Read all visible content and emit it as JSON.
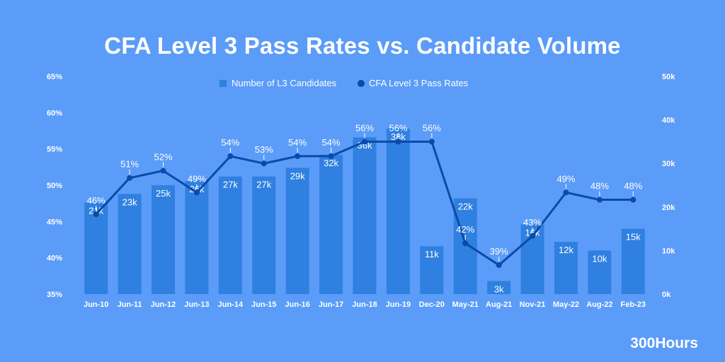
{
  "header": {
    "title": "CFA Level 3 Pass Rates vs. Candidate Volume"
  },
  "brand": {
    "name": "300Hours"
  },
  "colors": {
    "background": "#5b9cf8",
    "bar": "#2f80e0",
    "line": "#0b4aa8",
    "text": "#ffffff"
  },
  "chart_data": {
    "type": "bar",
    "title": "CFA Level 3 Pass Rates vs. Candidate Volume",
    "categories": [
      "Jun-10",
      "Jun-11",
      "Jun-12",
      "Jun-13",
      "Jun-14",
      "Jun-15",
      "Jun-16",
      "Jun-17",
      "Jun-18",
      "Jun-19",
      "Dec-20",
      "May-21",
      "Aug-21",
      "Nov-21",
      "May-22",
      "Aug-22",
      "Feb-23"
    ],
    "series": [
      {
        "name": "Number of L3 Candidates",
        "type": "bar",
        "axis": "right",
        "values": [
          21,
          23,
          25,
          26,
          27,
          27,
          29,
          32,
          36,
          38,
          11,
          22,
          3,
          16,
          12,
          10,
          15
        ],
        "labels": [
          "21k",
          "23k",
          "25k",
          "26k",
          "27k",
          "27k",
          "29k",
          "32k",
          "36k",
          "38k",
          "11k",
          "22k",
          "3k",
          "16k",
          "12k",
          "10k",
          "15k"
        ]
      },
      {
        "name": "CFA Level 3 Pass Rates",
        "type": "line",
        "axis": "left",
        "values": [
          46,
          51,
          52,
          49,
          54,
          53,
          54,
          54,
          56,
          56,
          56,
          42,
          39,
          43,
          49,
          48,
          48
        ],
        "labels": [
          "46%",
          "51%",
          "52%",
          "49%",
          "54%",
          "53%",
          "54%",
          "54%",
          "56%",
          "56%",
          "56%",
          "42%",
          "39%",
          "43%",
          "49%",
          "48%",
          "48%"
        ]
      }
    ],
    "left_axis": {
      "ylim": [
        35,
        65
      ],
      "ticks": [
        "35%",
        "40%",
        "45%",
        "50%",
        "55%",
        "60%",
        "65%"
      ]
    },
    "right_axis": {
      "ylim": [
        0,
        50
      ],
      "ticks": [
        "0k",
        "10k",
        "20k",
        "30k",
        "40k",
        "50k"
      ]
    },
    "grid": false,
    "legend_position": "top-center"
  }
}
